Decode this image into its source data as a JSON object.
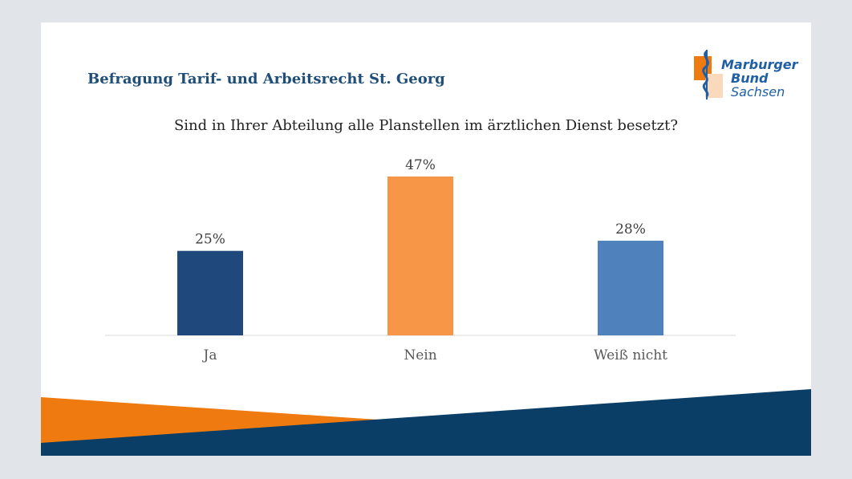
{
  "header": {
    "title": "Befragung Tarif- und Arbeitsrecht St. Georg"
  },
  "logo": {
    "line1": "Marburger",
    "line2": "Bund",
    "line3": "Sachsen"
  },
  "chart_data": {
    "type": "bar",
    "title": "Sind in Ihrer Abteilung alle Planstellen im ärztlichen Dienst besetzt?",
    "categories": [
      "Ja",
      "Nein",
      "Weiß nicht"
    ],
    "values": [
      25,
      47,
      28
    ],
    "value_labels": [
      "25%",
      "47%",
      "28%"
    ],
    "bar_colors": [
      "#1f497d",
      "#f79646",
      "#4f81bd"
    ],
    "ylim": [
      0,
      50
    ],
    "grid": false,
    "legend": "none"
  },
  "colors": {
    "accent_orange": "#ef7a0f",
    "accent_navy": "#0b3e66",
    "title_blue": "#1f4e79"
  }
}
